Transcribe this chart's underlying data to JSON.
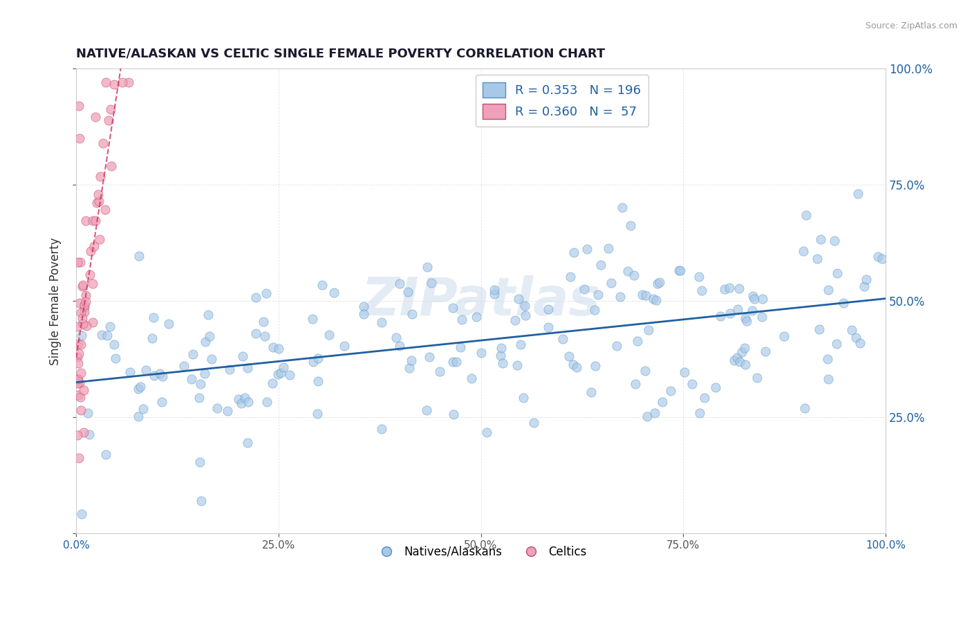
{
  "title": "NATIVE/ALASKAN VS CELTIC SINGLE FEMALE POVERTY CORRELATION CHART",
  "source": "Source: ZipAtlas.com",
  "ylabel": "Single Female Poverty",
  "legend_labels": [
    "Natives/Alaskans",
    "Celtics"
  ],
  "blue_R": 0.353,
  "blue_N": 196,
  "pink_R": 0.36,
  "pink_N": 57,
  "blue_color": "#a8c8e8",
  "pink_color": "#f0a0b8",
  "blue_line_color": "#2060a0",
  "pink_line_color": "#d03060",
  "blue_edge_color": "#5090c0",
  "pink_edge_color": "#c05070",
  "xlim": [
    0.0,
    1.0
  ],
  "ylim": [
    0.0,
    1.0
  ],
  "right_yticks": [
    0.25,
    0.5,
    0.75,
    1.0
  ],
  "right_yticklabels": [
    "25.0%",
    "50.0%",
    "75.0%",
    "100.0%"
  ],
  "background_color": "#ffffff",
  "grid_color": "#e0e0e0",
  "watermark": "ZIPatlas"
}
